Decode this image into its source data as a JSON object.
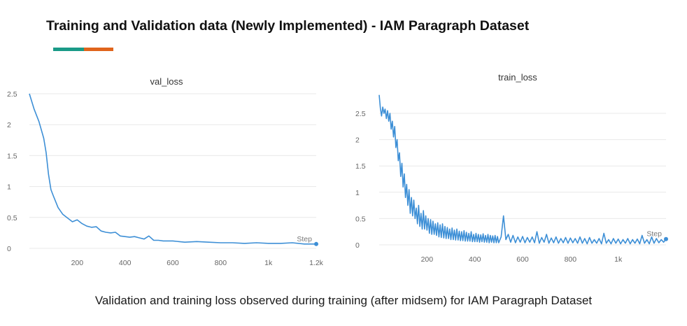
{
  "slide": {
    "title": "Training and Validation data (Newly Implemented) - IAM Paragraph Dataset",
    "accent_colors": [
      "#1a9a87",
      "#e0641c"
    ],
    "caption": "Validation and training loss  observed during training (after midsem) for IAM Paragraph Dataset"
  },
  "chart_data": [
    {
      "type": "line",
      "title": "val_loss",
      "xlabel": "Step",
      "ylabel": "",
      "xlim": [
        0,
        1200
      ],
      "ylim": [
        0,
        2.5
      ],
      "xticks": [
        200,
        400,
        600,
        800,
        1000,
        1200
      ],
      "xtick_labels": [
        "200",
        "400",
        "600",
        "800",
        "1k",
        "1.2k"
      ],
      "yticks": [
        0,
        0.5,
        1,
        1.5,
        2,
        2.5
      ],
      "ytick_labels": [
        "0",
        "0.5",
        "1",
        "1.5",
        "2",
        "2.5"
      ],
      "grid": true,
      "color": "#3d8fd6",
      "series": [
        {
          "x": [
            0,
            20,
            40,
            60,
            70,
            80,
            90,
            100,
            120,
            140,
            160,
            180,
            200,
            220,
            240,
            260,
            280,
            300,
            320,
            340,
            360,
            380,
            400,
            420,
            440,
            460,
            480,
            500,
            520,
            540,
            560,
            600,
            650,
            700,
            750,
            800,
            850,
            900,
            950,
            1000,
            1050,
            1100,
            1150,
            1200
          ],
          "y": [
            2.5,
            2.25,
            2.05,
            1.78,
            1.55,
            1.2,
            0.95,
            0.85,
            0.66,
            0.55,
            0.49,
            0.43,
            0.46,
            0.4,
            0.36,
            0.34,
            0.35,
            0.28,
            0.26,
            0.25,
            0.26,
            0.2,
            0.19,
            0.18,
            0.19,
            0.17,
            0.15,
            0.2,
            0.13,
            0.13,
            0.12,
            0.12,
            0.1,
            0.11,
            0.1,
            0.09,
            0.09,
            0.08,
            0.09,
            0.08,
            0.08,
            0.09,
            0.07,
            0.07
          ]
        }
      ]
    },
    {
      "type": "line",
      "title": "train_loss",
      "xlabel": "Step",
      "ylabel": "",
      "xlim": [
        0,
        1200
      ],
      "ylim": [
        0,
        2.5
      ],
      "xticks": [
        200,
        400,
        600,
        800,
        1000
      ],
      "xtick_labels": [
        "200",
        "400",
        "600",
        "800",
        "1k"
      ],
      "yticks": [
        0,
        0.5,
        1,
        1.5,
        2,
        2.5
      ],
      "ytick_labels": [
        "0",
        "0.5",
        "1",
        "1.5",
        "2",
        "2.5"
      ],
      "grid": true,
      "color": "#3d8fd6",
      "series": [
        {
          "x": [
            0,
            5,
            10,
            15,
            20,
            25,
            30,
            35,
            40,
            45,
            50,
            55,
            60,
            65,
            70,
            75,
            80,
            85,
            90,
            95,
            100,
            105,
            110,
            115,
            120,
            125,
            130,
            135,
            140,
            145,
            150,
            155,
            160,
            165,
            170,
            175,
            180,
            185,
            190,
            195,
            200,
            205,
            210,
            215,
            220,
            225,
            230,
            235,
            240,
            245,
            250,
            255,
            260,
            265,
            270,
            275,
            280,
            285,
            290,
            295,
            300,
            305,
            310,
            315,
            320,
            325,
            330,
            335,
            340,
            345,
            350,
            355,
            360,
            365,
            370,
            375,
            380,
            385,
            390,
            395,
            400,
            405,
            410,
            415,
            420,
            425,
            430,
            435,
            440,
            445,
            450,
            455,
            460,
            465,
            470,
            475,
            480,
            485,
            490,
            495,
            500,
            510,
            520,
            530,
            540,
            550,
            560,
            570,
            580,
            590,
            600,
            610,
            620,
            630,
            640,
            650,
            660,
            670,
            680,
            690,
            700,
            710,
            720,
            730,
            740,
            750,
            760,
            770,
            780,
            790,
            800,
            810,
            820,
            830,
            840,
            850,
            860,
            870,
            880,
            890,
            900,
            910,
            920,
            930,
            940,
            950,
            960,
            970,
            980,
            990,
            1000,
            1010,
            1020,
            1030,
            1040,
            1050,
            1060,
            1070,
            1080,
            1090,
            1100,
            1110,
            1120,
            1130,
            1140,
            1150,
            1160,
            1170,
            1180,
            1190,
            1200
          ],
          "y": [
            2.85,
            2.6,
            2.45,
            2.62,
            2.5,
            2.58,
            2.4,
            2.55,
            2.35,
            2.5,
            2.2,
            2.35,
            2.05,
            2.25,
            1.85,
            2.0,
            1.6,
            1.75,
            1.3,
            1.55,
            1.1,
            1.35,
            0.9,
            1.15,
            0.75,
            1.05,
            0.6,
            0.9,
            0.55,
            0.85,
            0.5,
            0.7,
            0.4,
            0.75,
            0.35,
            0.6,
            0.3,
            0.65,
            0.3,
            0.55,
            0.28,
            0.5,
            0.22,
            0.48,
            0.2,
            0.45,
            0.2,
            0.4,
            0.18,
            0.42,
            0.15,
            0.38,
            0.14,
            0.4,
            0.13,
            0.35,
            0.12,
            0.33,
            0.12,
            0.3,
            0.1,
            0.32,
            0.1,
            0.28,
            0.09,
            0.3,
            0.09,
            0.26,
            0.08,
            0.25,
            0.08,
            0.27,
            0.07,
            0.24,
            0.07,
            0.22,
            0.07,
            0.25,
            0.06,
            0.2,
            0.06,
            0.22,
            0.06,
            0.2,
            0.05,
            0.19,
            0.06,
            0.21,
            0.05,
            0.18,
            0.05,
            0.2,
            0.04,
            0.18,
            0.05,
            0.17,
            0.04,
            0.18,
            0.04,
            0.16,
            0.04,
            0.15,
            0.55,
            0.1,
            0.2,
            0.05,
            0.18,
            0.04,
            0.15,
            0.05,
            0.16,
            0.04,
            0.14,
            0.05,
            0.15,
            0.04,
            0.25,
            0.03,
            0.14,
            0.05,
            0.2,
            0.03,
            0.13,
            0.04,
            0.15,
            0.03,
            0.12,
            0.04,
            0.14,
            0.03,
            0.13,
            0.04,
            0.12,
            0.03,
            0.15,
            0.03,
            0.12,
            0.02,
            0.14,
            0.03,
            0.1,
            0.03,
            0.12,
            0.02,
            0.22,
            0.03,
            0.1,
            0.02,
            0.12,
            0.03,
            0.11,
            0.02,
            0.1,
            0.03,
            0.12,
            0.02,
            0.1,
            0.03,
            0.11,
            0.02,
            0.18,
            0.03,
            0.1,
            0.02,
            0.15,
            0.03,
            0.12,
            0.04,
            0.1,
            0.05,
            0.11
          ]
        }
      ]
    }
  ]
}
